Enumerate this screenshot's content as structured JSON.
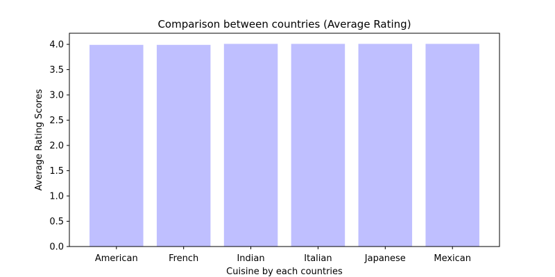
{
  "chart_data": {
    "type": "bar",
    "title": "Comparison between countries (Average Rating)",
    "xlabel": "Cuisine by each countries",
    "ylabel": "Average Rating Scores",
    "categories": [
      "American",
      "French",
      "Indian",
      "Italian",
      "Japanese",
      "Mexican"
    ],
    "values": [
      3.99,
      3.99,
      4.01,
      4.01,
      4.01,
      4.01
    ],
    "ylim": [
      0,
      4.22
    ],
    "yticks": [
      "0.0",
      "0.5",
      "1.0",
      "1.5",
      "2.0",
      "2.5",
      "3.0",
      "3.5",
      "4.0"
    ],
    "bar_color": "#bfbfff",
    "grid": false
  }
}
